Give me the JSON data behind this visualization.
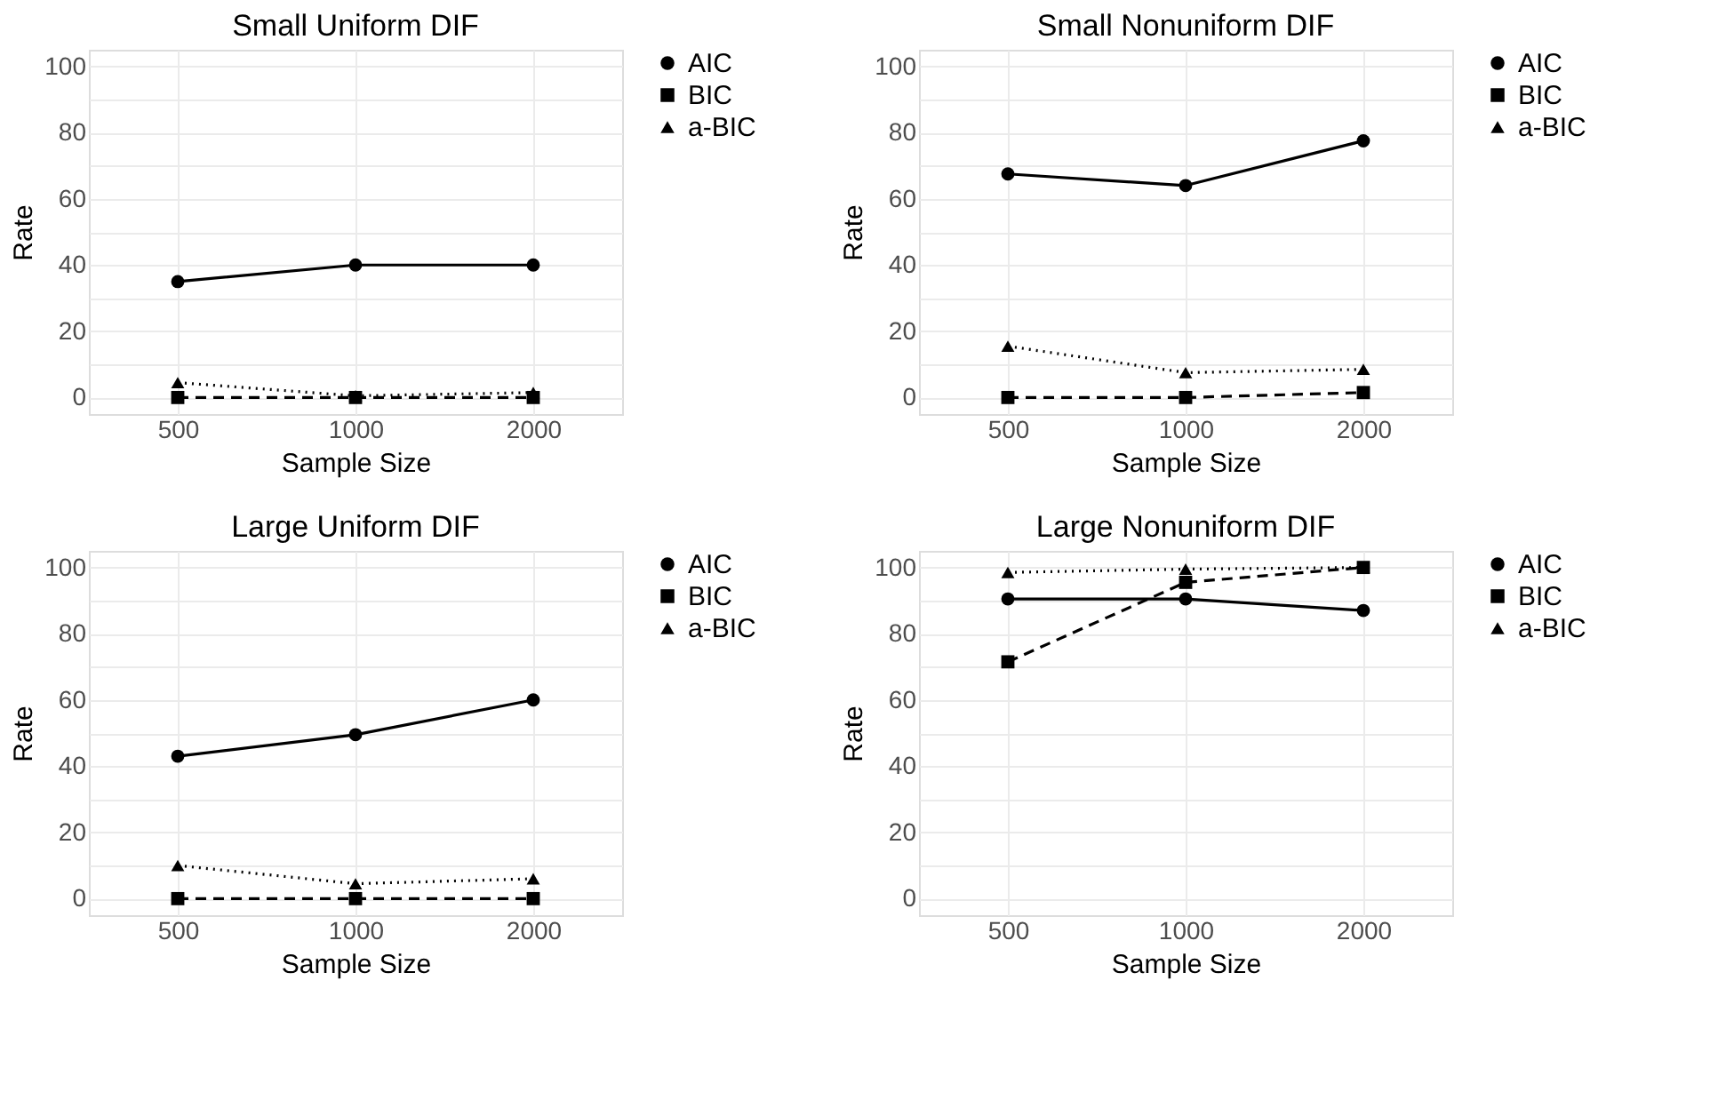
{
  "chart_data": [
    {
      "type": "line",
      "title": "Small Uniform DIF",
      "xlabel": "Sample Size",
      "ylabel": "Rate",
      "categories": [
        "500",
        "1000",
        "2000"
      ],
      "ylim": [
        -5,
        105
      ],
      "yticks": [
        0,
        {
          "value": 10,
          "label": null
        },
        20,
        {
          "value": 30,
          "label": null
        },
        40,
        {
          "value": 50,
          "label": null
        },
        60,
        {
          "value": 70,
          "label": null
        },
        80,
        {
          "value": 90,
          "label": null
        },
        100
      ],
      "grid": true,
      "legend": "right",
      "series": [
        {
          "name": "AIC",
          "color": "#000000",
          "marker": "circle",
          "line_style": "solid",
          "values": [
            35,
            40,
            40
          ]
        },
        {
          "name": "BIC",
          "color": "#000000",
          "marker": "square",
          "line_style": "dashed",
          "values": [
            0,
            0,
            0
          ]
        },
        {
          "name": "a-BIC",
          "color": "#000000",
          "marker": "triangle",
          "line_style": "dotted",
          "values": [
            4.5,
            0.5,
            1.5
          ]
        }
      ]
    },
    {
      "type": "line",
      "title": "Small Nonuniform DIF",
      "xlabel": "Sample Size",
      "ylabel": "Rate",
      "categories": [
        "500",
        "1000",
        "2000"
      ],
      "ylim": [
        -5,
        105
      ],
      "yticks": [
        0,
        {
          "value": 10,
          "label": null
        },
        20,
        {
          "value": 30,
          "label": null
        },
        40,
        {
          "value": 50,
          "label": null
        },
        60,
        {
          "value": 70,
          "label": null
        },
        80,
        {
          "value": 90,
          "label": null
        },
        100
      ],
      "grid": true,
      "legend": "right",
      "series": [
        {
          "name": "AIC",
          "color": "#000000",
          "marker": "circle",
          "line_style": "solid",
          "values": [
            67.5,
            64,
            77.5
          ]
        },
        {
          "name": "BIC",
          "color": "#000000",
          "marker": "square",
          "line_style": "dashed",
          "values": [
            0,
            0,
            1.5
          ]
        },
        {
          "name": "a-BIC",
          "color": "#000000",
          "marker": "triangle",
          "line_style": "dotted",
          "values": [
            15.5,
            7.5,
            8.5
          ]
        }
      ]
    },
    {
      "type": "line",
      "title": "Large Uniform DIF",
      "xlabel": "Sample Size",
      "ylabel": "Rate",
      "categories": [
        "500",
        "1000",
        "2000"
      ],
      "ylim": [
        -5,
        105
      ],
      "yticks": [
        0,
        {
          "value": 10,
          "label": null
        },
        20,
        {
          "value": 30,
          "label": null
        },
        40,
        {
          "value": 50,
          "label": null
        },
        60,
        {
          "value": 70,
          "label": null
        },
        80,
        {
          "value": 90,
          "label": null
        },
        100
      ],
      "grid": true,
      "legend": "right",
      "series": [
        {
          "name": "AIC",
          "color": "#000000",
          "marker": "circle",
          "line_style": "solid",
          "values": [
            43,
            49.5,
            60
          ]
        },
        {
          "name": "BIC",
          "color": "#000000",
          "marker": "square",
          "line_style": "dashed",
          "values": [
            0,
            0,
            0
          ]
        },
        {
          "name": "a-BIC",
          "color": "#000000",
          "marker": "triangle",
          "line_style": "dotted",
          "values": [
            10,
            4.5,
            6
          ]
        }
      ]
    },
    {
      "type": "line",
      "title": "Large Nonuniform DIF",
      "xlabel": "Sample Size",
      "ylabel": "Rate",
      "categories": [
        "500",
        "1000",
        "2000"
      ],
      "ylim": [
        -5,
        105
      ],
      "yticks": [
        0,
        {
          "value": 10,
          "label": null
        },
        20,
        {
          "value": 30,
          "label": null
        },
        40,
        {
          "value": 50,
          "label": null
        },
        60,
        {
          "value": 70,
          "label": null
        },
        80,
        {
          "value": 90,
          "label": null
        },
        100
      ],
      "grid": true,
      "legend": "right",
      "series": [
        {
          "name": "AIC",
          "color": "#000000",
          "marker": "circle",
          "line_style": "solid",
          "values": [
            90.5,
            90.5,
            87
          ]
        },
        {
          "name": "BIC",
          "color": "#000000",
          "marker": "square",
          "line_style": "dashed",
          "values": [
            71.5,
            95.5,
            100
          ]
        },
        {
          "name": "a-BIC",
          "color": "#000000",
          "marker": "triangle",
          "line_style": "dotted",
          "values": [
            98.5,
            99.5,
            100
          ]
        }
      ]
    }
  ]
}
